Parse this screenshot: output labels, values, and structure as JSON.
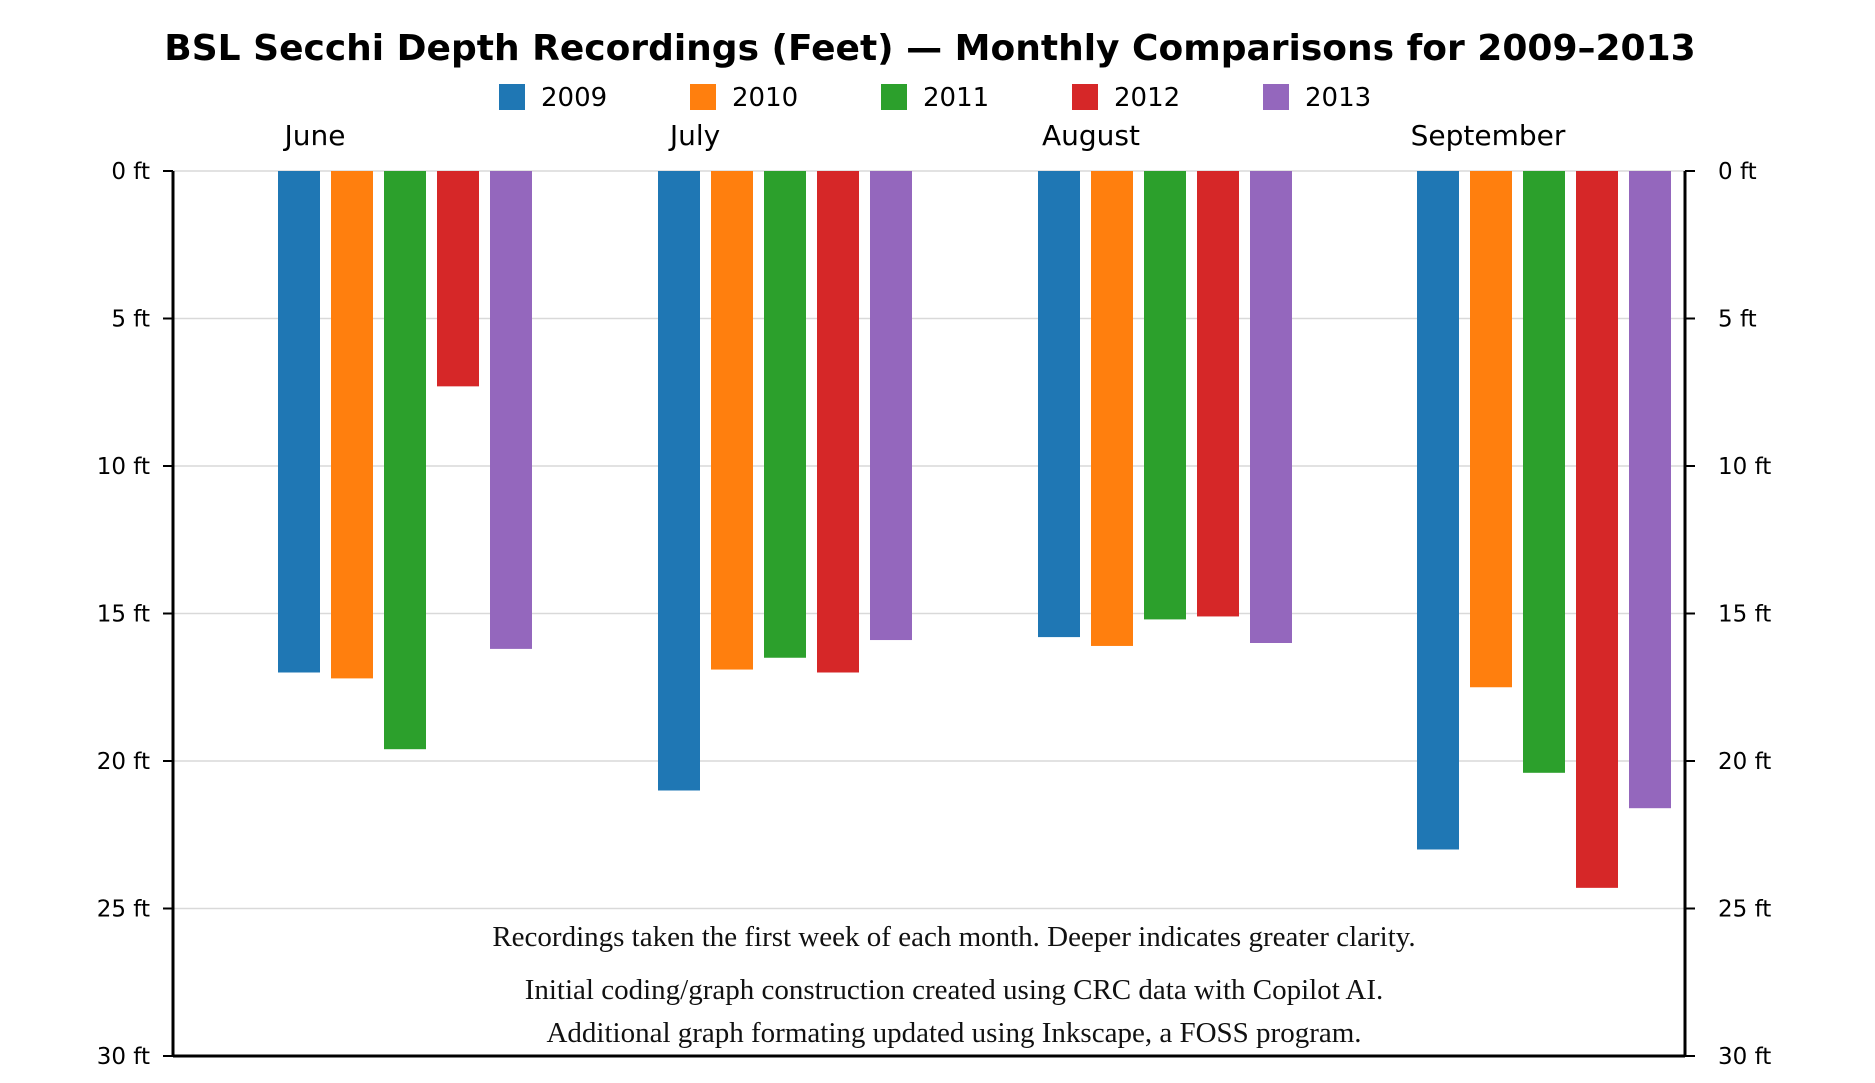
{
  "chart_data": {
    "type": "bar",
    "title": "BSL Secchi Depth Recordings (Feet) — Monthly Comparisons for 2009–2013",
    "categories": [
      "June",
      "July",
      "August",
      "September"
    ],
    "series": [
      {
        "name": "2009",
        "color": "#1f77b4",
        "values": [
          17.0,
          21.0,
          15.8,
          23.0
        ]
      },
      {
        "name": "2010",
        "color": "#ff7f0e",
        "values": [
          17.2,
          16.9,
          16.1,
          17.5
        ]
      },
      {
        "name": "2011",
        "color": "#2ca02c",
        "values": [
          19.6,
          16.5,
          15.2,
          20.4
        ]
      },
      {
        "name": "2012",
        "color": "#d62728",
        "values": [
          7.3,
          17.0,
          15.1,
          24.3
        ]
      },
      {
        "name": "2013",
        "color": "#9467bd",
        "values": [
          16.2,
          15.9,
          16.0,
          21.6
        ]
      }
    ],
    "ylim": [
      0,
      30
    ],
    "y_inverted": true,
    "y_ticks": [
      0,
      5,
      10,
      15,
      20,
      25,
      30
    ],
    "y_tick_labels": [
      "0 ft",
      "5 ft",
      "10 ft",
      "15 ft",
      "20 ft",
      "25 ft",
      "30 ft"
    ],
    "grid": true,
    "legend_position": "top-center",
    "annotations": [
      "Recordings taken the first week of  each month. Deeper indicates greater clarity.",
      "Initial coding/graph construction created using CRC data with Copilot AI.",
      "Additional graph formating updated using Inkscape, a FOSS program."
    ]
  }
}
